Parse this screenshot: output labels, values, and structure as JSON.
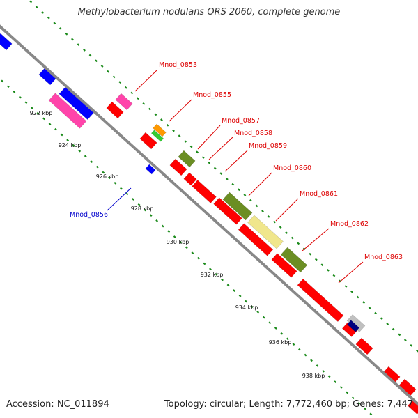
{
  "title": "Methylobacterium nodulans ORS 2060, complete genome",
  "footer": {
    "accession": "Accession: NC_011894",
    "summary": "Topology: circular; Length: 7,772,460 bp; Genes: 7,447"
  },
  "colors": {
    "backbone": "#888888",
    "ticks": "#1a8a1a",
    "label_forward": "#dd0000",
    "label_reverse": "#0000cc"
  },
  "scale_labels": [
    "922 kbp",
    "924 kbp",
    "926 kbp",
    "928 kbp",
    "930 kbp",
    "932 kbp",
    "934 kbp",
    "936 kbp",
    "938 kbp"
  ],
  "gene_labels": [
    {
      "text": "Mnod_0853",
      "strand": "forward"
    },
    {
      "text": "Mnod_0855",
      "strand": "forward"
    },
    {
      "text": "Mnod_0857",
      "strand": "forward"
    },
    {
      "text": "Mnod_0858",
      "strand": "forward"
    },
    {
      "text": "Mnod_0859",
      "strand": "forward"
    },
    {
      "text": "Mnod_0860",
      "strand": "forward"
    },
    {
      "text": "Mnod_0861",
      "strand": "forward"
    },
    {
      "text": "Mnod_0862",
      "strand": "forward"
    },
    {
      "text": "Mnod_0863",
      "strand": "forward"
    },
    {
      "text": "Mnod_0856",
      "strand": "reverse"
    }
  ],
  "feature_colors": {
    "cds": "#ff0000",
    "cds_reverse": "#0000ff",
    "cog_magenta": "#ff44aa",
    "cog_orange": "#ff9900",
    "cog_green": "#33cc33",
    "cog_olive": "#6b8e23",
    "cog_khaki": "#f0e68c",
    "cog_navy": "#000080",
    "cog_silver": "#c0c0c0"
  }
}
